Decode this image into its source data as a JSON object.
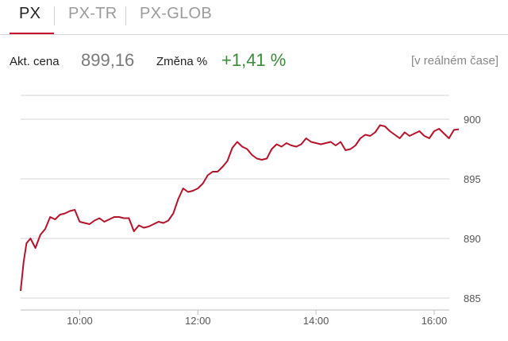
{
  "tabs": [
    {
      "label": "PX",
      "active": true
    },
    {
      "label": "PX-TR",
      "active": false
    },
    {
      "label": "PX-GLOB",
      "active": false
    }
  ],
  "stats": {
    "price_label": "Akt. cena",
    "price_value": "899,16",
    "change_label": "Změna %",
    "change_value": "+1,41 %",
    "realtime_label": "[v reálném čase]"
  },
  "colors": {
    "accent": "#c8102e",
    "line": "#b3132b",
    "positive": "#3a8a3a"
  },
  "chart_data": {
    "type": "line",
    "title": "",
    "xlabel": "",
    "ylabel": "",
    "ylim": [
      884,
      902
    ],
    "yticks": [
      885,
      890,
      895,
      900
    ],
    "ytick_labels": [
      "885",
      "890",
      "895",
      "900"
    ],
    "xticks": [
      "10:00",
      "12:00",
      "14:00",
      "16:00"
    ],
    "xlim": [
      "09:00",
      "16:25"
    ],
    "grid": true,
    "series": [
      {
        "x": [
          "09:00",
          "09:03",
          "09:06",
          "09:10",
          "09:15",
          "09:20",
          "09:25",
          "09:30",
          "09:35",
          "09:40",
          "09:45",
          "09:50",
          "09:55",
          "10:00",
          "10:05",
          "10:10",
          "10:15",
          "10:20",
          "10:25",
          "10:30",
          "10:35",
          "10:40",
          "10:45",
          "10:50",
          "10:55",
          "11:00",
          "11:05",
          "11:10",
          "11:15",
          "11:20",
          "11:25",
          "11:30",
          "11:35",
          "11:40",
          "11:45",
          "11:50",
          "11:55",
          "12:00",
          "12:05",
          "12:10",
          "12:15",
          "12:20",
          "12:25",
          "12:30",
          "12:35",
          "12:40",
          "12:45",
          "12:50",
          "12:55",
          "13:00",
          "13:05",
          "13:10",
          "13:15",
          "13:20",
          "13:25",
          "13:30",
          "13:35",
          "13:40",
          "13:45",
          "13:50",
          "13:55",
          "14:00",
          "14:05",
          "14:10",
          "14:15",
          "14:20",
          "14:25",
          "14:30",
          "14:35",
          "14:40",
          "14:45",
          "14:50",
          "14:55",
          "15:00",
          "15:05",
          "15:10",
          "15:15",
          "15:20",
          "15:25",
          "15:30",
          "15:35",
          "15:40",
          "15:45",
          "15:50",
          "15:55",
          "16:00",
          "16:05",
          "16:10",
          "16:15",
          "16:20",
          "16:25"
        ],
        "values": [
          885.6,
          888.0,
          889.6,
          890.0,
          889.2,
          890.3,
          890.8,
          891.8,
          891.6,
          892.0,
          892.1,
          892.3,
          892.4,
          891.4,
          891.3,
          891.2,
          891.5,
          891.7,
          891.4,
          891.6,
          891.8,
          891.8,
          891.7,
          891.7,
          890.6,
          891.1,
          890.9,
          891.0,
          891.2,
          891.4,
          891.3,
          891.5,
          892.1,
          893.3,
          894.2,
          893.9,
          894.0,
          894.2,
          894.6,
          895.3,
          895.6,
          895.6,
          896.0,
          896.5,
          897.6,
          898.1,
          897.7,
          897.5,
          897.0,
          896.7,
          896.6,
          896.7,
          897.5,
          897.9,
          897.7,
          898.0,
          897.8,
          897.7,
          897.9,
          898.4,
          898.1,
          898.0,
          897.9,
          898.0,
          898.1,
          897.8,
          898.1,
          897.4,
          897.5,
          897.8,
          898.4,
          898.7,
          898.6,
          898.9,
          899.5,
          899.4,
          899.0,
          898.7,
          898.4,
          898.9,
          898.6,
          898.8,
          899.0,
          898.6,
          898.4,
          899.0,
          899.2,
          898.8,
          898.4,
          899.1,
          899.16
        ]
      }
    ]
  }
}
